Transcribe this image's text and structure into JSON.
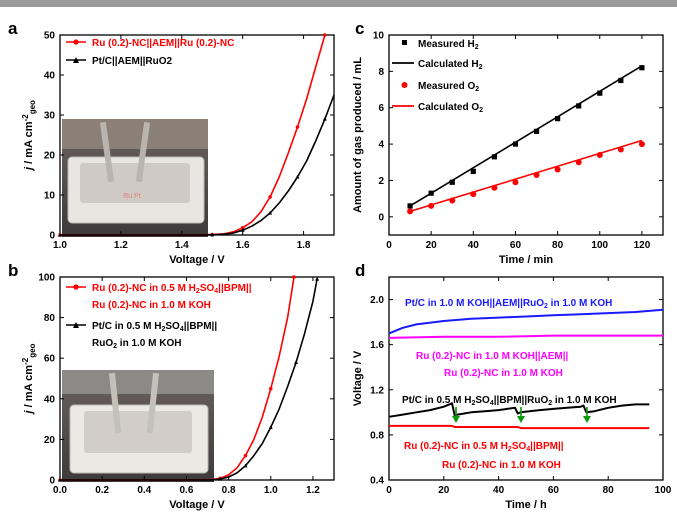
{
  "chart_data": [
    {
      "panel": "a",
      "type": "line",
      "xlabel": "Voltage / V",
      "ylabel": "j / mA cm-2geo",
      "xlim": [
        1.0,
        1.9
      ],
      "ylim": [
        0,
        50
      ],
      "xticks": [
        1.0,
        1.2,
        1.4,
        1.6,
        1.8
      ],
      "yticks": [
        0,
        10,
        20,
        30,
        40,
        50
      ],
      "legend": "top-left",
      "photo_inset": true,
      "series": [
        {
          "name": "Ru (0.2)-NC||AEM||Ru (0.2)-NC",
          "color": "#ff0000",
          "marker": "circle",
          "x": [
            1.0,
            1.3,
            1.45,
            1.5,
            1.54,
            1.57,
            1.6,
            1.63,
            1.66,
            1.69,
            1.72,
            1.75,
            1.78,
            1.81,
            1.84,
            1.87
          ],
          "y": [
            0,
            0,
            0,
            0.1,
            0.3,
            0.8,
            1.8,
            3.3,
            5.8,
            9.5,
            14.5,
            20.5,
            27,
            34,
            42,
            50
          ]
        },
        {
          "name": "Pt/C||AEM||RuO2",
          "color": "#000000",
          "marker": "triangle",
          "x": [
            1.0,
            1.3,
            1.45,
            1.5,
            1.54,
            1.57,
            1.6,
            1.63,
            1.66,
            1.69,
            1.72,
            1.75,
            1.78,
            1.81,
            1.84,
            1.87,
            1.9
          ],
          "y": [
            0,
            0,
            0,
            0.05,
            0.2,
            0.5,
            1.2,
            2.2,
            3.6,
            5.5,
            8.0,
            11,
            14.5,
            18.5,
            23.5,
            29,
            35
          ]
        }
      ]
    },
    {
      "panel": "b",
      "type": "line",
      "xlabel": "Voltage / V",
      "ylabel": "j / mA cm-2geo",
      "xlim": [
        0.0,
        1.3
      ],
      "ylim": [
        0,
        100
      ],
      "xticks": [
        0.0,
        0.2,
        0.4,
        0.6,
        0.8,
        1.0,
        1.2
      ],
      "yticks": [
        0,
        20,
        40,
        60,
        80,
        100
      ],
      "legend": "top-left",
      "photo_inset": true,
      "series": [
        {
          "name": "Ru (0.2)-NC in 0.5 M H2SO4||BPM|| Ru (0.2)-NC in 1.0 M KOH",
          "color": "#ff0000",
          "marker": "circle",
          "x": [
            0.0,
            0.6,
            0.72,
            0.76,
            0.8,
            0.84,
            0.88,
            0.92,
            0.96,
            1.0,
            1.04,
            1.08,
            1.11
          ],
          "y": [
            0,
            0,
            0.2,
            0.8,
            2.5,
            6,
            12,
            20,
            31,
            45,
            61,
            80,
            100
          ]
        },
        {
          "name": "Pt/C in 0.5 M H2SO4||BPM|| RuO2 in 1.0 M KOH",
          "color": "#000000",
          "marker": "triangle",
          "x": [
            0.0,
            0.6,
            0.72,
            0.76,
            0.8,
            0.84,
            0.88,
            0.92,
            0.96,
            1.0,
            1.04,
            1.08,
            1.12,
            1.16,
            1.2,
            1.22
          ],
          "y": [
            0,
            0,
            0.1,
            0.5,
            1.5,
            3.5,
            7,
            12,
            18,
            26,
            35,
            46,
            58,
            72,
            88,
            99
          ]
        }
      ]
    },
    {
      "panel": "c",
      "type": "scatter",
      "xlabel": "Time / min",
      "ylabel": "Amount of gas produced / mL",
      "xlim": [
        0,
        130
      ],
      "ylim": [
        -1,
        10
      ],
      "xticks": [
        0,
        20,
        40,
        60,
        80,
        100,
        120
      ],
      "yticks": [
        0,
        2,
        4,
        6,
        8,
        10
      ],
      "legend": "top-left",
      "series": [
        {
          "name": "Measured H2",
          "color": "#000000",
          "marker": "square",
          "x": [
            10,
            20,
            30,
            40,
            50,
            60,
            70,
            80,
            90,
            100,
            110,
            120
          ],
          "y": [
            0.6,
            1.3,
            1.9,
            2.5,
            3.3,
            4.0,
            4.7,
            5.4,
            6.1,
            6.8,
            7.5,
            8.2
          ]
        },
        {
          "name": "Calculated H2",
          "color": "#000000",
          "marker": "line",
          "x": [
            10,
            120
          ],
          "y": [
            0.6,
            8.3
          ]
        },
        {
          "name": "Measured O2",
          "color": "#ff0000",
          "marker": "circle",
          "x": [
            10,
            20,
            30,
            40,
            50,
            60,
            70,
            80,
            90,
            100,
            110,
            120
          ],
          "y": [
            0.3,
            0.6,
            0.9,
            1.25,
            1.6,
            1.9,
            2.3,
            2.6,
            3.0,
            3.4,
            3.7,
            4.0
          ]
        },
        {
          "name": "Calculated O2",
          "color": "#ff0000",
          "marker": "line",
          "x": [
            10,
            120
          ],
          "y": [
            0.3,
            4.2
          ]
        }
      ]
    },
    {
      "panel": "d",
      "type": "line",
      "xlabel": "Time / h",
      "ylabel": "Voltage / V",
      "xlim": [
        0,
        100
      ],
      "ylim": [
        0.4,
        2.2
      ],
      "xticks": [
        0,
        20,
        40,
        60,
        80,
        100
      ],
      "yticks": [
        0.4,
        0.8,
        1.2,
        1.6,
        2.0
      ],
      "annotations": [
        {
          "text": "Pt/C in 1.0 M KOH||AEM||RuO2 in 1.0 M KOH",
          "color": "#1a1aff"
        },
        {
          "text": "Ru (0.2)-NC in 1.0 M KOH||AEM||",
          "color": "#ff00ff"
        },
        {
          "text": "Ru (0.2)-NC in 1.0 M KOH",
          "color": "#ff00ff"
        },
        {
          "text": "Pt/C in 0.5 M H2SO4||BPM||RuO2 in 1.0 M KOH",
          "color": "#000000"
        },
        {
          "text": "Ru (0.2)-NC in 0.5 M H2SO4||BPM||",
          "color": "#ff0000"
        },
        {
          "text": "Ru (0.2)-NC in 1.0 M KOH",
          "color": "#ff0000"
        }
      ],
      "series": [
        {
          "name": "Pt/C in 1.0 M KOH||AEM||RuO2 in 1.0 M KOH",
          "color": "#1a1aff",
          "x": [
            0,
            5,
            10,
            20,
            30,
            40,
            50,
            60,
            70,
            80,
            90,
            100
          ],
          "y": [
            1.7,
            1.75,
            1.78,
            1.81,
            1.83,
            1.84,
            1.85,
            1.86,
            1.87,
            1.88,
            1.89,
            1.91
          ]
        },
        {
          "name": "Ru (0.2)-NC in 1.0 M KOH||AEM|| Ru (0.2)-NC in 1.0 M KOH",
          "color": "#ff00ff",
          "x": [
            0,
            20,
            40,
            60,
            80,
            100
          ],
          "y": [
            1.66,
            1.67,
            1.67,
            1.68,
            1.68,
            1.68
          ]
        },
        {
          "name": "Pt/C in 0.5 M H2SO4||BPM||RuO2 in 1.0 M KOH",
          "color": "#000000",
          "x": [
            0,
            5,
            10,
            15,
            20,
            23,
            24,
            25,
            30,
            35,
            40,
            46,
            47,
            48,
            55,
            60,
            65,
            70,
            71,
            72,
            75,
            80,
            85,
            90,
            95
          ],
          "y": [
            0.96,
            0.98,
            1.0,
            1.02,
            1.05,
            1.08,
            0.97,
            0.98,
            1.0,
            1.01,
            1.02,
            1.04,
            0.99,
            1.0,
            1.02,
            1.03,
            1.04,
            1.05,
            1.06,
            1.0,
            1.01,
            1.04,
            1.06,
            1.07,
            1.07
          ]
        },
        {
          "name": "Ru (0.2)-NC in 0.5 M H2SO4||BPM|| Ru (0.2)-NC in 1.0 M KOH",
          "color": "#ff0000",
          "x": [
            0,
            23,
            24,
            47,
            48,
            71,
            72,
            95
          ],
          "y": [
            0.88,
            0.88,
            0.87,
            0.87,
            0.86,
            0.86,
            0.86,
            0.86
          ]
        }
      ]
    }
  ],
  "panel_labels": {
    "a": "a",
    "b": "b",
    "c": "c",
    "d": "d"
  }
}
